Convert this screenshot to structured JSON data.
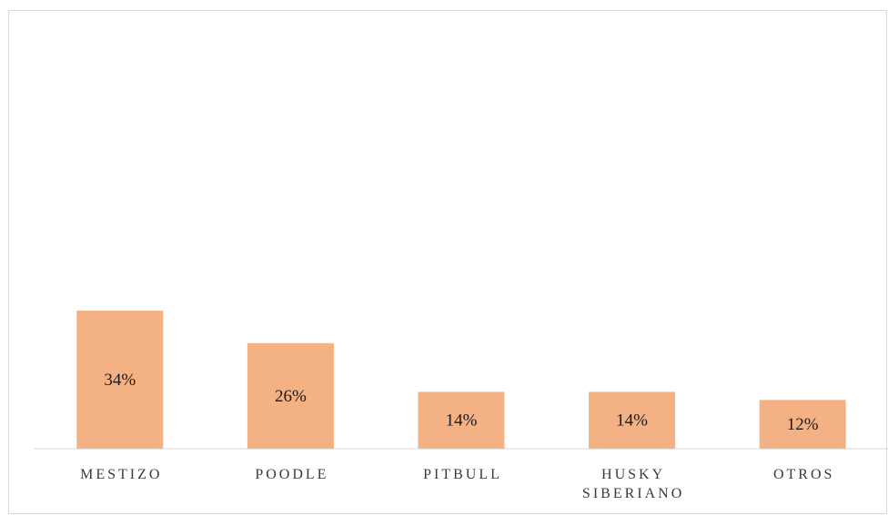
{
  "chart_data": {
    "type": "bar",
    "categories": [
      [
        "MESTIZO"
      ],
      [
        "POODLE"
      ],
      [
        "PITBULL"
      ],
      [
        "HUSKY",
        "SIBERIANO"
      ],
      [
        "OTROS"
      ]
    ],
    "values": [
      34,
      26,
      14,
      14,
      12
    ],
    "data_labels": [
      "34%",
      "26%",
      "14%",
      "14%",
      "12%"
    ],
    "unit": "%",
    "ylim": [
      0,
      100
    ],
    "grid": false,
    "legend": "none",
    "bar_color": "#F4B183",
    "axis_color": "#d9d9d9"
  }
}
